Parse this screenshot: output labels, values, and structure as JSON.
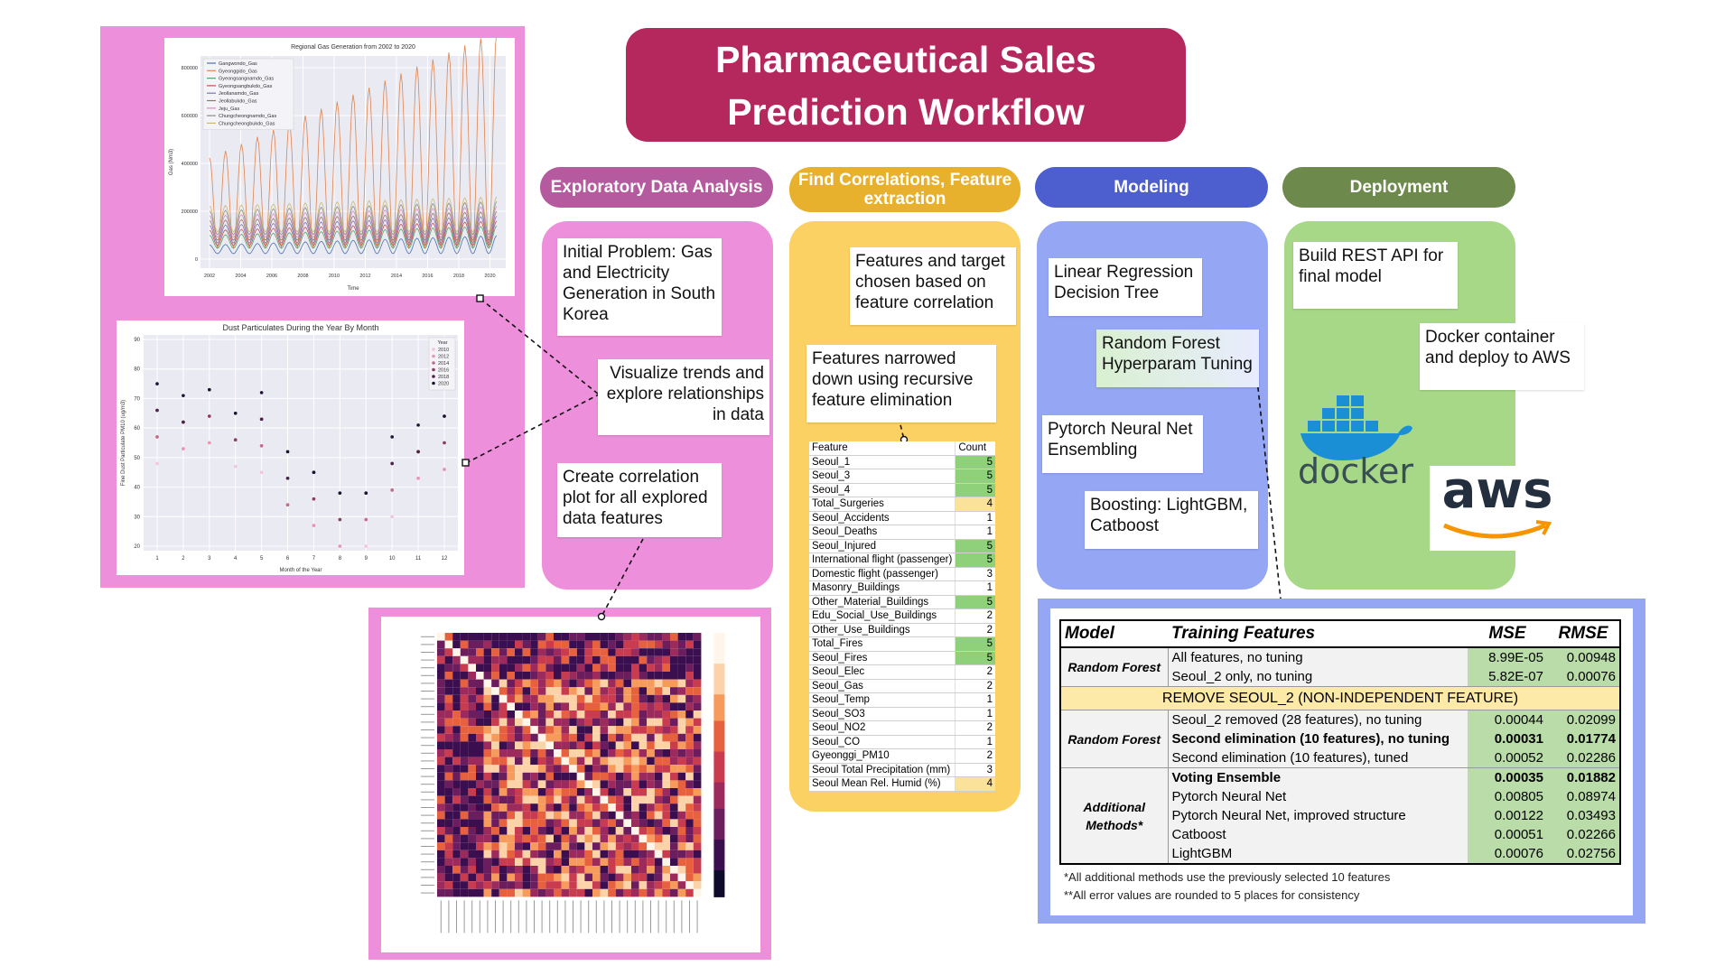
{
  "title": {
    "line1": "Pharmaceutical Sales",
    "line2": "Prediction Workflow"
  },
  "stages": [
    {
      "label": "Exploratory Data Analysis",
      "color": "#b55a9e"
    },
    {
      "label": "Find Correlations, Feature extraction",
      "color": "#e8b12d"
    },
    {
      "label": "Modeling",
      "color": "#4d5fcf"
    },
    {
      "label": "Deployment",
      "color": "#6d8a4c"
    }
  ],
  "eda": {
    "note1": "Initial Problem: Gas and Electricity Generation in South Korea",
    "note2": "Visualize trends and explore relationships in data",
    "note3": "Create correlation plot for all explored data features"
  },
  "gas_chart": {
    "title": "Regional Gas Generation from 2002 to 2020",
    "xlabel": "Time",
    "ylabel": "Gas (Nm3)",
    "yticks": [
      "0",
      "200000",
      "400000",
      "600000",
      "800000"
    ],
    "xticks": [
      "2002",
      "2004",
      "2006",
      "2008",
      "2010",
      "2012",
      "2014",
      "2016",
      "2018",
      "2020"
    ],
    "legend": [
      "Gangwondo_Gas",
      "Gyeonggido_Gas",
      "Gyeongsangnamdo_Gas",
      "Gyeongsangbukdo_Gas",
      "Jeollanamdo_Gas",
      "Jeollabukdo_Gas",
      "Jeju_Gas",
      "Chungcheongnamdo_Gas",
      "Chungcheongbukdo_Gas"
    ],
    "legend_colors": [
      "#4c72b0",
      "#dd8452",
      "#55a868",
      "#c44e52",
      "#8172b3",
      "#937860",
      "#da8bc3",
      "#8c8c8c",
      "#ccb974"
    ]
  },
  "dust_chart": {
    "title": "Dust Particulates During the Year By Month",
    "xlabel": "Month of the Year",
    "ylabel": "Fine Dust Particulate PM10 (ug/m3)",
    "yticks": [
      "20",
      "30",
      "40",
      "50",
      "60",
      "70",
      "80",
      "90"
    ],
    "xticks": [
      "1",
      "2",
      "3",
      "4",
      "5",
      "6",
      "7",
      "8",
      "9",
      "10",
      "11",
      "12"
    ],
    "legend_title": "Year",
    "legend": [
      "2010",
      "2012",
      "2014",
      "2016",
      "2018",
      "2020"
    ]
  },
  "corr": {
    "note1": "Features and target chosen based on feature correlation",
    "note2": "Features narrowed down using recursive feature elimination",
    "table_headers": [
      "Feature",
      "Count"
    ],
    "rows": [
      {
        "f": "Seoul_1",
        "c": "5"
      },
      {
        "f": "Seoul_3",
        "c": "5"
      },
      {
        "f": "Seoul_4",
        "c": "5"
      },
      {
        "f": "Total_Surgeries",
        "c": "4"
      },
      {
        "f": "Seoul_Accidents",
        "c": "1"
      },
      {
        "f": "Seoul_Deaths",
        "c": "1"
      },
      {
        "f": "Seoul_Injured",
        "c": "5"
      },
      {
        "f": "International flight (passenger)",
        "c": "5"
      },
      {
        "f": "Domestic flight (passenger)",
        "c": "3"
      },
      {
        "f": "Masonry_Buildings",
        "c": "1"
      },
      {
        "f": "Other_Material_Buildings",
        "c": "5"
      },
      {
        "f": "Edu_Social_Use_Buildings",
        "c": "2"
      },
      {
        "f": "Other_Use_Buildings",
        "c": "2"
      },
      {
        "f": "Total_Fires",
        "c": "5"
      },
      {
        "f": "Seoul_Fires",
        "c": "5"
      },
      {
        "f": "Seoul_Elec",
        "c": "2"
      },
      {
        "f": "Seoul_Gas",
        "c": "2"
      },
      {
        "f": "Seoul_Temp",
        "c": "1"
      },
      {
        "f": "Seoul_SO3",
        "c": "1"
      },
      {
        "f": "Seoul_NO2",
        "c": "2"
      },
      {
        "f": "Seoul_CO",
        "c": "1"
      },
      {
        "f": "Gyeonggi_PM10",
        "c": "2"
      },
      {
        "f": "Seoul Total Precipitation (mm)",
        "c": "3"
      },
      {
        "f": "Seoul Mean Rel. Humid (%)",
        "c": "4"
      }
    ]
  },
  "modeling": {
    "note1": "Linear Regression Decision Tree",
    "note2": "Random Forest Hyperparam Tuning",
    "note3": "Pytorch Neural Net Ensembling",
    "note4": "Boosting: LightGBM, Catboost"
  },
  "deploy": {
    "note1": "Build REST API for final model",
    "note2": "Docker container and deploy to AWS",
    "docker_text": "docker",
    "aws_text": "aws"
  },
  "results": {
    "headers": [
      "Model",
      "Training Features",
      "MSE",
      "RMSE"
    ],
    "rf1_label": "Random Forest",
    "rf1": [
      {
        "feat": "All features, no tuning",
        "mse": "8.99E-05",
        "rmse": "0.00948"
      },
      {
        "feat": "Seoul_2 only, no tuning",
        "mse": "5.82E-07",
        "rmse": "0.00076"
      }
    ],
    "banner": "REMOVE SEOUL_2 (NON-INDEPENDENT FEATURE)",
    "rf2_label": "Random Forest",
    "rf2": [
      {
        "feat": "Seoul_2 removed (28 features), no tuning",
        "mse": "0.00044",
        "rmse": "0.02099"
      },
      {
        "feat": "Second elimination (10 features), no tuning",
        "mse": "0.00031",
        "rmse": "0.01774"
      },
      {
        "feat": "Second elimination (10 features), tuned",
        "mse": "0.00052",
        "rmse": "0.02286"
      }
    ],
    "add_label": "Additional Methods*",
    "add": [
      {
        "feat": "Voting Ensemble",
        "mse": "0.00035",
        "rmse": "0.01882"
      },
      {
        "feat": "Pytorch Neural Net",
        "mse": "0.00805",
        "rmse": "0.08974"
      },
      {
        "feat": "Pytorch Neural Net, improved structure",
        "mse": "0.00122",
        "rmse": "0.03493"
      },
      {
        "feat": "Catboost",
        "mse": "0.00051",
        "rmse": "0.02266"
      },
      {
        "feat": "LightGBM",
        "mse": "0.00076",
        "rmse": "0.02756"
      }
    ],
    "foot1": "*All additional methods use the previously selected 10 features",
    "foot2": "**All error values are rounded to 5 places for consistency"
  }
}
